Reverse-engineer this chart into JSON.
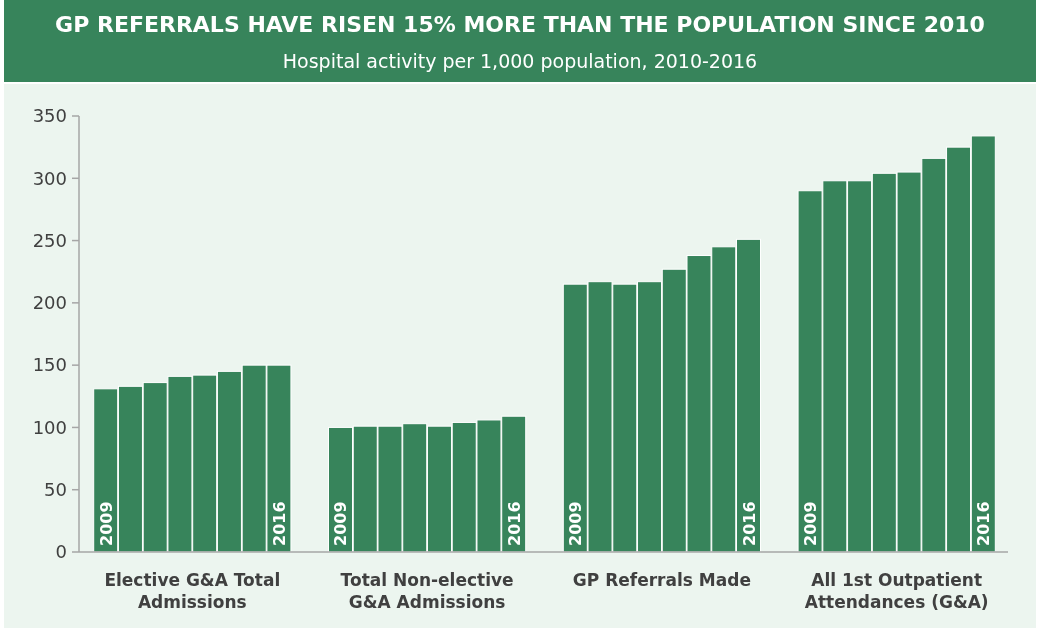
{
  "chart_data": {
    "type": "bar",
    "title": "GP REFERRALS HAVE RISEN 15% MORE THAN THE POPULATION SINCE 2010",
    "subtitle": "Hospital activity per 1,000 population, 2010-2016",
    "categories": [
      "Elective G&A Total Admissions",
      "Total Non-elective G&A Admissions",
      "GP Referrals Made",
      "All 1st Outpatient Attendances (G&A)"
    ],
    "series": [
      {
        "name": "2009",
        "color": "#37845b",
        "values": [
          131,
          100,
          215,
          290
        ]
      },
      {
        "color": "#37845b",
        "values": [
          133,
          101,
          217,
          298
        ]
      },
      {
        "color": "#37845b",
        "values": [
          136,
          101,
          215,
          298
        ]
      },
      {
        "color": "#37845b",
        "values": [
          141,
          103,
          217,
          304
        ]
      },
      {
        "color": "#37845b",
        "values": [
          142,
          101,
          227,
          305
        ]
      },
      {
        "color": "#37845b",
        "values": [
          145,
          104,
          238,
          316
        ]
      },
      {
        "color": "#37845b",
        "values": [
          150,
          106,
          245,
          325
        ]
      },
      {
        "name": "2016",
        "color": "#37845b",
        "values": [
          150,
          109,
          251,
          334
        ]
      }
    ],
    "ylim": [
      0,
      350
    ],
    "yticks": [
      0,
      50,
      100,
      150,
      200,
      250,
      300,
      350
    ],
    "grid": false
  }
}
